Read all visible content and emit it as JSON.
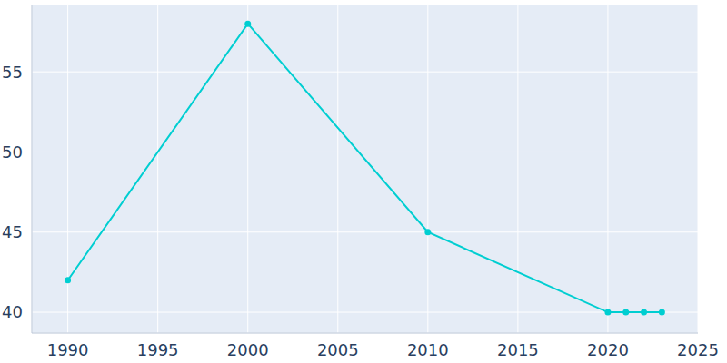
{
  "chart_data": {
    "type": "line",
    "x": [
      1990,
      2000,
      2010,
      2020,
      2021,
      2022,
      2023
    ],
    "values": [
      42,
      58,
      45,
      40,
      40,
      40,
      40
    ],
    "color": "#00ced1",
    "marker": "circle",
    "xlim": [
      1988,
      2025
    ],
    "xticks": [
      1990,
      1995,
      2000,
      2005,
      2010,
      2015,
      2020,
      2025
    ],
    "ylim": [
      38.7,
      59.2
    ],
    "yticks": [
      40,
      45,
      50,
      55
    ],
    "grid": true
  }
}
